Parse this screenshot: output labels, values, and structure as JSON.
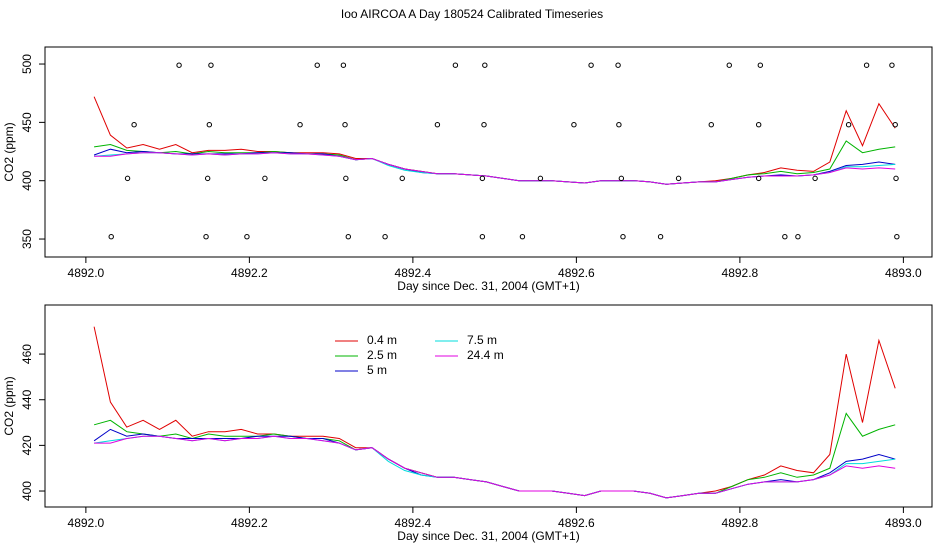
{
  "title": "Ioo AIRCOA A  Day 180524  Calibrated Timeseries",
  "chart_data": [
    {
      "type": "line",
      "xlabel": "Day since Dec. 31, 2004 (GMT+1)",
      "ylabel": "CO2 (ppm)",
      "xlim": [
        4891.95,
        4893.035
      ],
      "ylim": [
        334.6,
        514.6
      ],
      "xticks": [
        {
          "value": 4892.0,
          "label": "4892.0"
        },
        {
          "value": 4892.2,
          "label": "4892.2"
        },
        {
          "value": 4892.4,
          "label": "4892.4"
        },
        {
          "value": 4892.6,
          "label": "4892.6"
        },
        {
          "value": 4892.8,
          "label": "4892.8"
        },
        {
          "value": 4893.0,
          "label": "4893.0"
        }
      ],
      "yticks": [
        350,
        400,
        450,
        500
      ],
      "x": [
        4892.01,
        4892.03,
        4892.05,
        4892.07,
        4892.09,
        4892.11,
        4892.13,
        4892.15,
        4892.17,
        4892.19,
        4892.21,
        4892.23,
        4892.25,
        4892.27,
        4892.29,
        4892.31,
        4892.33,
        4892.35,
        4892.37,
        4892.39,
        4892.41,
        4892.43,
        4892.45,
        4892.47,
        4892.49,
        4892.51,
        4892.53,
        4892.55,
        4892.57,
        4892.59,
        4892.61,
        4892.63,
        4892.65,
        4892.67,
        4892.69,
        4892.71,
        4892.73,
        4892.75,
        4892.77,
        4892.79,
        4892.81,
        4892.83,
        4892.85,
        4892.87,
        4892.89,
        4892.91,
        4892.93,
        4892.95,
        4892.97,
        4892.99
      ],
      "series": [
        {
          "color": "#e00000",
          "values": [
            472,
            439,
            428,
            431,
            427,
            431,
            424,
            426,
            426,
            427,
            425,
            425,
            424,
            424,
            424,
            423,
            419,
            419,
            414,
            410,
            408,
            406,
            406,
            405,
            404,
            402,
            400,
            400,
            400,
            399,
            398,
            400,
            400,
            400,
            399,
            397,
            398,
            399,
            400,
            402,
            405,
            407,
            411,
            409,
            408,
            416,
            460,
            430,
            466,
            445
          ]
        },
        {
          "color": "#00b400",
          "values": [
            429,
            431,
            426,
            425,
            424,
            425,
            423,
            425,
            424,
            424,
            424,
            425,
            424,
            423,
            423,
            422,
            418,
            419,
            414,
            410,
            408,
            406,
            406,
            405,
            404,
            402,
            400,
            400,
            400,
            399,
            398,
            400,
            400,
            400,
            399,
            397,
            398,
            399,
            399,
            402,
            405,
            406,
            408,
            406,
            407,
            410,
            434,
            424,
            427,
            429
          ]
        },
        {
          "color": "#0000c8",
          "values": [
            422,
            427,
            424,
            425,
            424,
            423,
            423,
            423,
            423,
            423,
            424,
            424,
            424,
            423,
            423,
            421,
            418,
            419,
            414,
            410,
            407,
            406,
            406,
            405,
            404,
            402,
            400,
            400,
            400,
            399,
            398,
            400,
            400,
            400,
            399,
            397,
            398,
            399,
            399,
            401,
            403,
            404,
            405,
            404,
            405,
            408,
            413,
            414,
            416,
            414
          ]
        },
        {
          "color": "#00dcdc",
          "values": [
            421,
            422,
            423,
            424,
            424,
            423,
            422,
            423,
            422,
            423,
            423,
            424,
            423,
            423,
            422,
            421,
            418,
            419,
            413,
            409,
            407,
            406,
            406,
            405,
            404,
            402,
            400,
            400,
            400,
            399,
            398,
            400,
            400,
            400,
            399,
            397,
            398,
            399,
            399,
            401,
            403,
            404,
            404,
            404,
            405,
            407,
            412,
            412,
            413,
            414
          ]
        },
        {
          "color": "#e000e0",
          "values": [
            421,
            421,
            423,
            424,
            424,
            423,
            422,
            423,
            422,
            423,
            423,
            424,
            423,
            423,
            422,
            421,
            418,
            419,
            414,
            410,
            408,
            406,
            406,
            405,
            404,
            402,
            400,
            400,
            400,
            399,
            398,
            400,
            400,
            400,
            399,
            397,
            398,
            399,
            399,
            401,
            403,
            404,
            404,
            404,
            405,
            407,
            411,
            410,
            411,
            410
          ]
        }
      ],
      "points": {
        "x": [
          4892.114,
          4892.153,
          4892.283,
          4892.315,
          4892.452,
          4892.488,
          4892.618,
          4892.651,
          4892.787,
          4892.825,
          4892.955,
          4892.986,
          4892.059,
          4892.151,
          4892.262,
          4892.317,
          4892.43,
          4892.487,
          4892.597,
          4892.652,
          4892.765,
          4892.823,
          4892.933,
          4892.99,
          4892.051,
          4892.149,
          4892.219,
          4892.318,
          4892.387,
          4892.485,
          4892.556,
          4892.655,
          4892.725,
          4892.823,
          4892.892,
          4892.991,
          4892.031,
          4892.147,
          4892.197,
          4892.321,
          4892.366,
          4892.485,
          4892.534,
          4892.657,
          4892.703,
          4892.855,
          4892.871,
          4892.992
        ],
        "y": [
          499,
          499,
          499,
          499,
          499,
          499,
          499,
          499,
          499,
          499,
          499,
          499,
          448,
          448,
          448,
          448,
          448,
          448,
          448,
          448,
          448,
          448,
          448,
          448,
          402,
          402,
          402,
          402,
          402,
          402,
          402,
          402,
          402,
          402,
          402,
          402,
          352,
          352,
          352,
          352,
          352,
          352,
          352,
          352,
          352,
          352,
          352,
          352
        ]
      }
    },
    {
      "type": "line",
      "xlabel": "Day since Dec. 31, 2004 (GMT+1)",
      "ylabel": "CO2 (ppm)",
      "xlim": [
        4891.95,
        4893.035
      ],
      "ylim": [
        393,
        481.5
      ],
      "xticks": [
        {
          "value": 4892.0,
          "label": "4892.0"
        },
        {
          "value": 4892.2,
          "label": "4892.2"
        },
        {
          "value": 4892.4,
          "label": "4892.4"
        },
        {
          "value": 4892.6,
          "label": "4892.6"
        },
        {
          "value": 4892.8,
          "label": "4892.8"
        },
        {
          "value": 4893.0,
          "label": "4893.0"
        }
      ],
      "yticks": [
        400,
        420,
        440,
        460
      ],
      "x": [
        4892.01,
        4892.03,
        4892.05,
        4892.07,
        4892.09,
        4892.11,
        4892.13,
        4892.15,
        4892.17,
        4892.19,
        4892.21,
        4892.23,
        4892.25,
        4892.27,
        4892.29,
        4892.31,
        4892.33,
        4892.35,
        4892.37,
        4892.39,
        4892.41,
        4892.43,
        4892.45,
        4892.47,
        4892.49,
        4892.51,
        4892.53,
        4892.55,
        4892.57,
        4892.59,
        4892.61,
        4892.63,
        4892.65,
        4892.67,
        4892.69,
        4892.71,
        4892.73,
        4892.75,
        4892.77,
        4892.79,
        4892.81,
        4892.83,
        4892.85,
        4892.87,
        4892.89,
        4892.91,
        4892.93,
        4892.95,
        4892.97,
        4892.99
      ],
      "series": [
        {
          "name": "0.4 m",
          "color": "#e00000",
          "values": [
            472,
            439,
            428,
            431,
            427,
            431,
            424,
            426,
            426,
            427,
            425,
            425,
            424,
            424,
            424,
            423,
            419,
            419,
            414,
            410,
            408,
            406,
            406,
            405,
            404,
            402,
            400,
            400,
            400,
            399,
            398,
            400,
            400,
            400,
            399,
            397,
            398,
            399,
            400,
            402,
            405,
            407,
            411,
            409,
            408,
            416,
            460,
            430,
            466,
            445
          ]
        },
        {
          "name": "2.5 m",
          "color": "#00b400",
          "values": [
            429,
            431,
            426,
            425,
            424,
            425,
            423,
            425,
            424,
            424,
            424,
            425,
            424,
            423,
            423,
            422,
            418,
            419,
            414,
            410,
            408,
            406,
            406,
            405,
            404,
            402,
            400,
            400,
            400,
            399,
            398,
            400,
            400,
            400,
            399,
            397,
            398,
            399,
            399,
            402,
            405,
            406,
            408,
            406,
            407,
            410,
            434,
            424,
            427,
            429
          ]
        },
        {
          "name": "5 m",
          "color": "#0000c8",
          "values": [
            422,
            427,
            424,
            425,
            424,
            423,
            423,
            423,
            423,
            423,
            424,
            424,
            424,
            423,
            423,
            421,
            418,
            419,
            414,
            410,
            407,
            406,
            406,
            405,
            404,
            402,
            400,
            400,
            400,
            399,
            398,
            400,
            400,
            400,
            399,
            397,
            398,
            399,
            399,
            401,
            403,
            404,
            405,
            404,
            405,
            408,
            413,
            414,
            416,
            414
          ]
        },
        {
          "name": "7.5 m",
          "color": "#00dcdc",
          "values": [
            421,
            422,
            423,
            424,
            424,
            423,
            422,
            423,
            422,
            423,
            423,
            424,
            423,
            423,
            422,
            421,
            418,
            419,
            413,
            409,
            407,
            406,
            406,
            405,
            404,
            402,
            400,
            400,
            400,
            399,
            398,
            400,
            400,
            400,
            399,
            397,
            398,
            399,
            399,
            401,
            403,
            404,
            404,
            404,
            405,
            407,
            412,
            412,
            413,
            414
          ]
        },
        {
          "name": "24.4 m",
          "color": "#e000e0",
          "values": [
            421,
            421,
            423,
            424,
            424,
            423,
            422,
            423,
            422,
            423,
            423,
            424,
            423,
            423,
            422,
            421,
            418,
            419,
            414,
            410,
            408,
            406,
            406,
            405,
            404,
            402,
            400,
            400,
            400,
            399,
            398,
            400,
            400,
            400,
            399,
            397,
            398,
            399,
            399,
            401,
            403,
            404,
            404,
            404,
            405,
            407,
            411,
            410,
            411,
            410
          ]
        }
      ]
    }
  ]
}
